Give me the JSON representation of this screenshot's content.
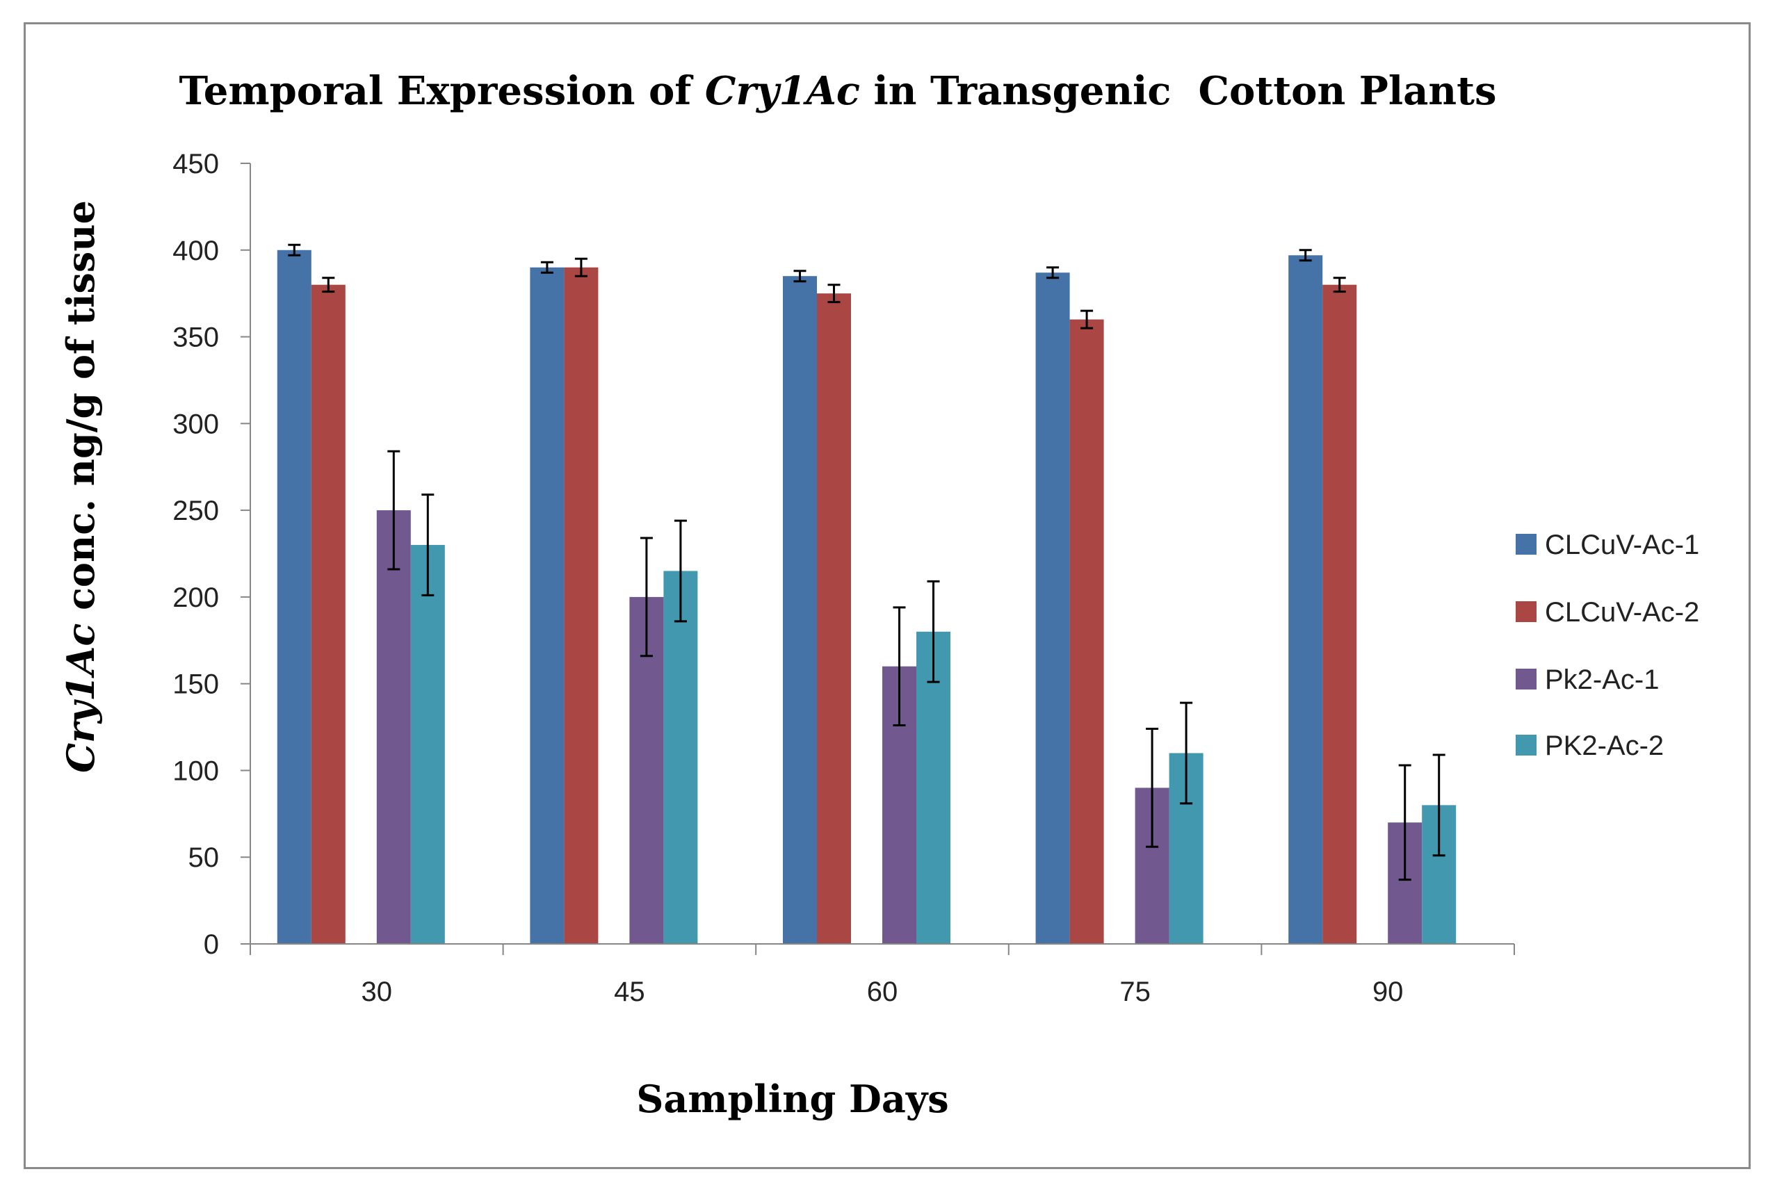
{
  "chart_data": {
    "type": "bar",
    "title_prefix": "Temporal Expression of ",
    "title_italic": "Cry1Ac",
    "title_suffix": " in Transgenic  Cotton Plants",
    "xlabel": "Sampling Days",
    "ylabel_italic": "Cry1Ac",
    "ylabel_rest": " conc. ng/g of tissue",
    "categories": [
      "30",
      "45",
      "60",
      "75",
      "90"
    ],
    "ylim": [
      0,
      450
    ],
    "yticks": [
      0,
      50,
      100,
      150,
      200,
      250,
      300,
      350,
      400,
      450
    ],
    "grid": false,
    "legend_position": "right",
    "series": [
      {
        "name": "CLCuV-Ac-1",
        "color": "#4572A7",
        "values": [
          400,
          390,
          385,
          387,
          397
        ],
        "errors": [
          3,
          3,
          3,
          3,
          3
        ]
      },
      {
        "name": "CLCuV-Ac-2",
        "color": "#AA4643",
        "values": [
          380,
          390,
          375,
          360,
          380
        ],
        "errors": [
          4,
          5,
          5,
          5,
          4
        ]
      },
      {
        "name": "Pk2-Ac-1",
        "color": "#71588F",
        "values": [
          250,
          200,
          160,
          90,
          70
        ],
        "errors": [
          34,
          34,
          34,
          34,
          33
        ]
      },
      {
        "name": "PK2-Ac-2",
        "color": "#4198AF",
        "values": [
          230,
          215,
          180,
          110,
          80
        ],
        "errors": [
          29,
          29,
          29,
          29,
          29
        ]
      }
    ]
  }
}
